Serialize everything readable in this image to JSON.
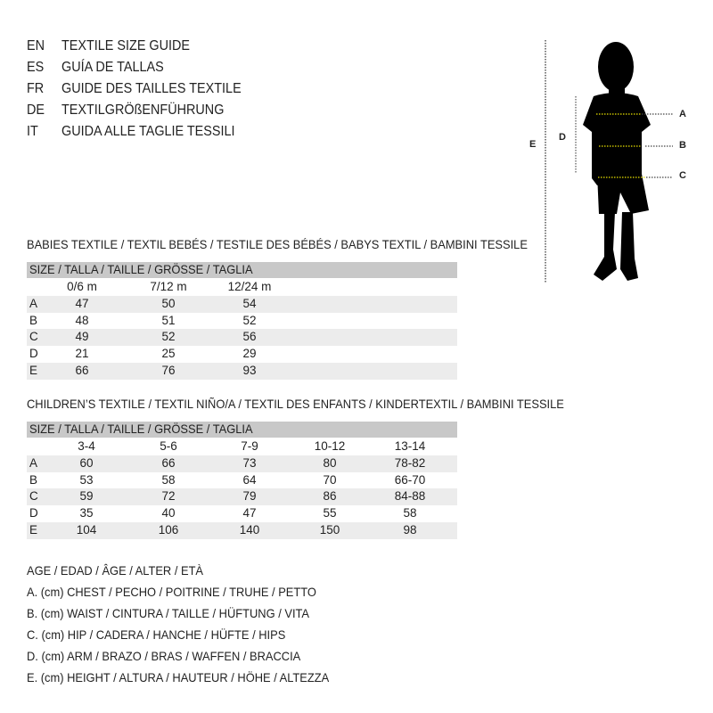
{
  "header": [
    {
      "code": "EN",
      "title": "TEXTILE SIZE GUIDE"
    },
    {
      "code": "ES",
      "title": "GUÍA DE TALLAS"
    },
    {
      "code": "FR",
      "title": "GUIDE DES TAILLES TEXTILE"
    },
    {
      "code": "DE",
      "title": "TEXTILGRÖßENFÜHRUNG"
    },
    {
      "code": "IT",
      "title": "GUIDA ALLE TAGLIE TESSILI"
    }
  ],
  "diagram": {
    "labels": {
      "a": "A",
      "b": "B",
      "c": "C",
      "d": "D",
      "e": "E"
    },
    "accent": "#e8e000"
  },
  "babies": {
    "title": "BABIES TEXTILE / TEXTIL BEBÉS / TESTILE DES BÉBÉS / BABYS TEXTIL / BAMBINI TESSILE",
    "size_header": "SIZE / TALLA / TAILLE / GRÖSSE / TAGLIA",
    "columns": [
      "0/6 m",
      "7/12 m",
      "12/24 m"
    ],
    "rows": [
      [
        "A",
        "47",
        "50",
        "54"
      ],
      [
        "B",
        "48",
        "51",
        "52"
      ],
      [
        "C",
        "49",
        "52",
        "56"
      ],
      [
        "D",
        "21",
        "25",
        "29"
      ],
      [
        "E",
        "66",
        "76",
        "93"
      ]
    ]
  },
  "children": {
    "title": "CHILDREN’S TEXTILE / TEXTIL NIÑO/A / TEXTIL DES ENFANTS / KINDERTEXTIL / BAMBINI TESSILE",
    "size_header": "SIZE / TALLA / TAILLE / GRÖSSE / TAGLIA",
    "columns": [
      "3-4",
      "5-6",
      "7-9",
      "10-12",
      "13-14"
    ],
    "rows": [
      [
        "A",
        "60",
        "66",
        "73",
        "80",
        "78-82"
      ],
      [
        "B",
        "53",
        "58",
        "64",
        "70",
        "66-70"
      ],
      [
        "C",
        "59",
        "72",
        "79",
        "86",
        "84-88"
      ],
      [
        "D",
        "35",
        "40",
        "47",
        "55",
        "58"
      ],
      [
        "E",
        "104",
        "106",
        "140",
        "150",
        "98"
      ]
    ]
  },
  "legend": [
    "AGE / EDAD / ÂGE / ALTER / ETÀ",
    "A. (cm) CHEST / PECHO / POITRINE / TRUHE / PETTO",
    "B. (cm) WAIST / CINTURA / TAILLE / HÜFTUNG / VITA",
    "C. (cm) HIP / CADERA / HANCHE / HÜFTE / HIPS",
    "D. (cm) ARM / BRAZO / BRAS / WAFFEN / BRACCIA",
    "E. (cm) HEIGHT / ALTURA / HAUTEUR / HÖHE / ALTEZZA"
  ]
}
